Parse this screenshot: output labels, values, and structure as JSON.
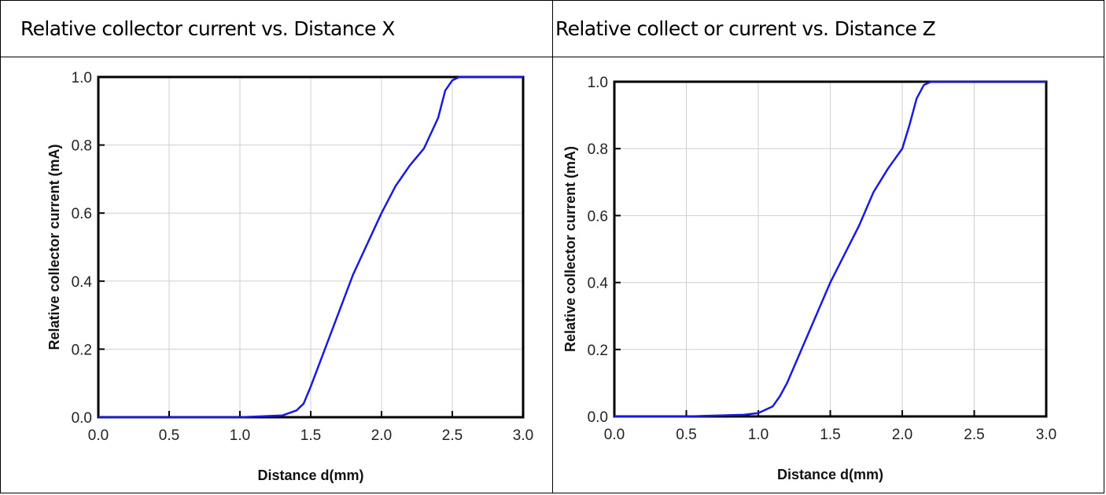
{
  "table": {
    "titles": [
      "Relative collector current vs. Distance X",
      "Relative collect or current vs. Distance Z"
    ]
  },
  "chart_data": [
    {
      "type": "line",
      "title": "Relative collector current vs. Distance X",
      "xlabel": "Distance d(mm)",
      "ylabel": "Relative collector current (mA)",
      "xlim": [
        0.0,
        3.0
      ],
      "ylim": [
        0.0,
        1.0
      ],
      "xticks": [
        "0.0",
        "0.5",
        "1.0",
        "1.5",
        "2.0",
        "2.5",
        "3.0"
      ],
      "yticks": [
        "0.0",
        "0.2",
        "0.4",
        "0.6",
        "0.8",
        "1.0"
      ],
      "grid": true,
      "series_color": "#1a1adf",
      "series": [
        {
          "x": [
            0.0,
            0.5,
            1.0,
            1.3,
            1.4,
            1.45,
            1.5,
            1.6,
            1.8,
            2.0,
            2.1,
            2.2,
            2.3,
            2.4,
            2.45,
            2.5,
            2.55,
            3.0
          ],
          "y": [
            0.0,
            0.0,
            0.0,
            0.005,
            0.02,
            0.04,
            0.09,
            0.2,
            0.42,
            0.6,
            0.68,
            0.74,
            0.79,
            0.88,
            0.96,
            0.99,
            1.0,
            1.0
          ]
        }
      ]
    },
    {
      "type": "line",
      "title": "Relative collect or current vs. Distance Z",
      "xlabel": "Distance d(mm)",
      "ylabel": "Relative collector current (mA)",
      "xlim": [
        0.0,
        3.0
      ],
      "ylim": [
        0.0,
        1.0
      ],
      "xticks": [
        "0.0",
        "0.5",
        "1.0",
        "1.5",
        "2.0",
        "2.5",
        "3.0"
      ],
      "yticks": [
        "0.0",
        "0.2",
        "0.4",
        "0.6",
        "0.8",
        "1.0"
      ],
      "grid": true,
      "series_color": "#1a1adf",
      "series": [
        {
          "x": [
            0.0,
            0.5,
            0.9,
            1.0,
            1.1,
            1.15,
            1.2,
            1.3,
            1.5,
            1.7,
            1.8,
            1.9,
            2.0,
            2.05,
            2.1,
            2.15,
            2.2,
            3.0
          ],
          "y": [
            0.0,
            0.0,
            0.005,
            0.01,
            0.03,
            0.06,
            0.1,
            0.2,
            0.4,
            0.57,
            0.67,
            0.74,
            0.8,
            0.87,
            0.95,
            0.99,
            1.0,
            1.0
          ]
        }
      ]
    }
  ]
}
